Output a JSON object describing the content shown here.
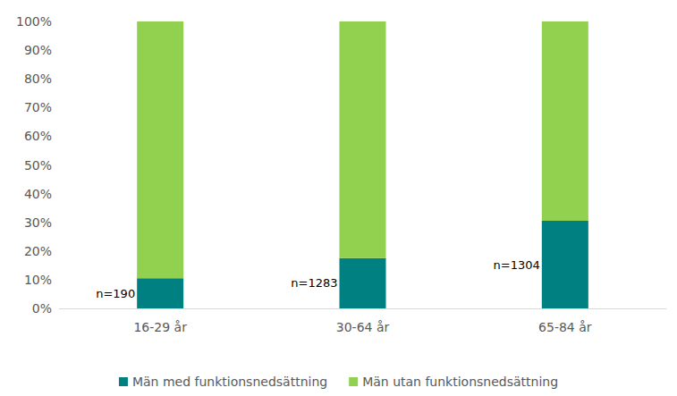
{
  "chart_data": {
    "type": "bar",
    "stacked": true,
    "categories": [
      "16-29 år",
      "30-64 år",
      "65-84 år"
    ],
    "series": [
      {
        "name": "Män med funktionsnedsättning",
        "color": "#008080",
        "values": [
          10.5,
          17.5,
          30.5
        ]
      },
      {
        "name": "Män utan funktionsnedsättning",
        "color": "#92d050",
        "values": [
          89.5,
          82.5,
          69.5
        ]
      }
    ],
    "annotations": [
      {
        "category": "16-29 år",
        "text": "n=190"
      },
      {
        "category": "30-64 år",
        "text": "n=1283"
      },
      {
        "category": "65-84 år",
        "text": "n=1304"
      }
    ],
    "ylim": [
      0,
      100
    ],
    "yticks": [
      {
        "value": 0,
        "label": "0%"
      },
      {
        "value": 10,
        "label": "10%"
      },
      {
        "value": 20,
        "label": "20%"
      },
      {
        "value": 30,
        "label": "30%"
      },
      {
        "value": 40,
        "label": "40%"
      },
      {
        "value": 50,
        "label": "50%"
      },
      {
        "value": 60,
        "label": "60%"
      },
      {
        "value": 70,
        "label": "70%"
      },
      {
        "value": 80,
        "label": "80%"
      },
      {
        "value": 90,
        "label": "90%"
      },
      {
        "value": 100,
        "label": "100%"
      }
    ],
    "grid": false,
    "legend": "bottom"
  }
}
